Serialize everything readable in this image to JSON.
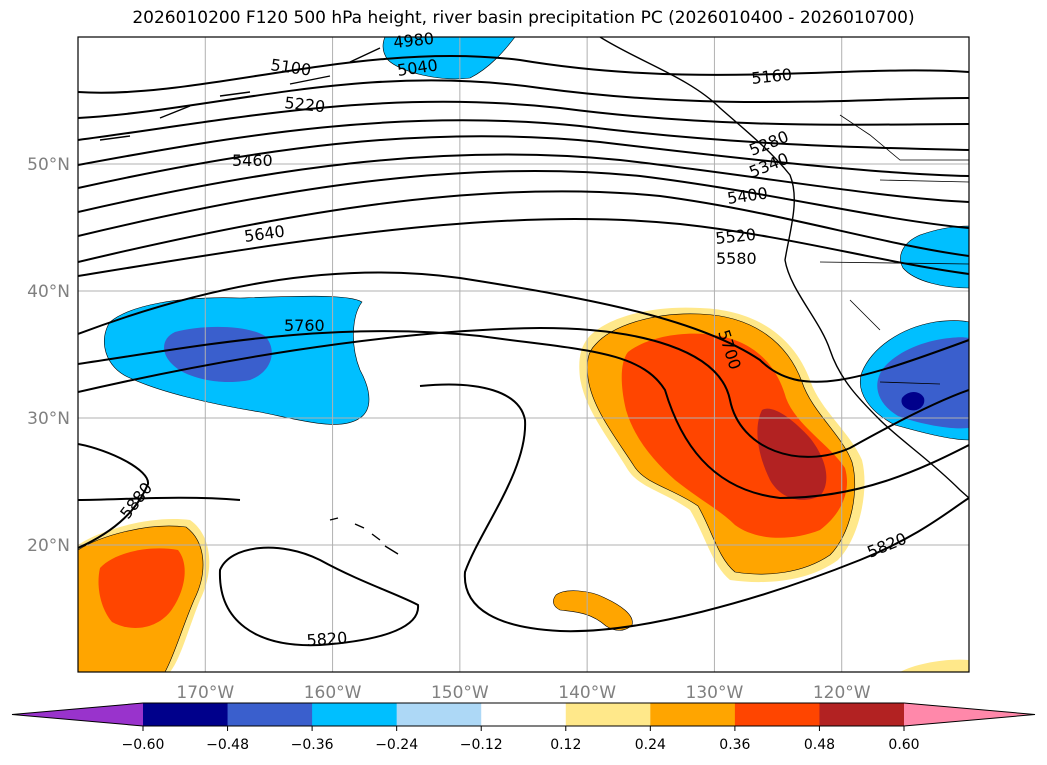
{
  "title": "2026010200 F120 500 hPa height, river basin precipitation PC (2026010400 - 2026010700)",
  "map": {
    "lat_labels": [
      {
        "lat": 50,
        "text": "50°N"
      },
      {
        "lat": 40,
        "text": "40°N"
      },
      {
        "lat": 30,
        "text": "30°N"
      },
      {
        "lat": 20,
        "text": "20°N"
      }
    ],
    "lon_labels": [
      {
        "lon": -170,
        "text": "170°W"
      },
      {
        "lon": -160,
        "text": "160°W"
      },
      {
        "lon": -150,
        "text": "150°W"
      },
      {
        "lon": -140,
        "text": "140°W"
      },
      {
        "lon": -130,
        "text": "130°W"
      },
      {
        "lon": -120,
        "text": "120°W"
      }
    ],
    "contour_labels": [
      "5100",
      "5160",
      "5220",
      "5280",
      "5340",
      "5400",
      "5460",
      "5520",
      "5580",
      "5640",
      "5700",
      "5760",
      "5820",
      "5820",
      "5880",
      "4980",
      "5040"
    ]
  },
  "colorbar": {
    "ticks": [
      "−0.60",
      "−0.48",
      "−0.36",
      "−0.24",
      "−0.12",
      "0.12",
      "0.24",
      "0.36",
      "0.48",
      "0.60"
    ],
    "colors": [
      "#9933cc",
      "#00008b",
      "#3a5fcd",
      "#00bfff",
      "#add8f6",
      "#ffffff",
      "#ffe88a",
      "#ffa500",
      "#ff4500",
      "#b22222",
      "#ff88aa"
    ]
  }
}
